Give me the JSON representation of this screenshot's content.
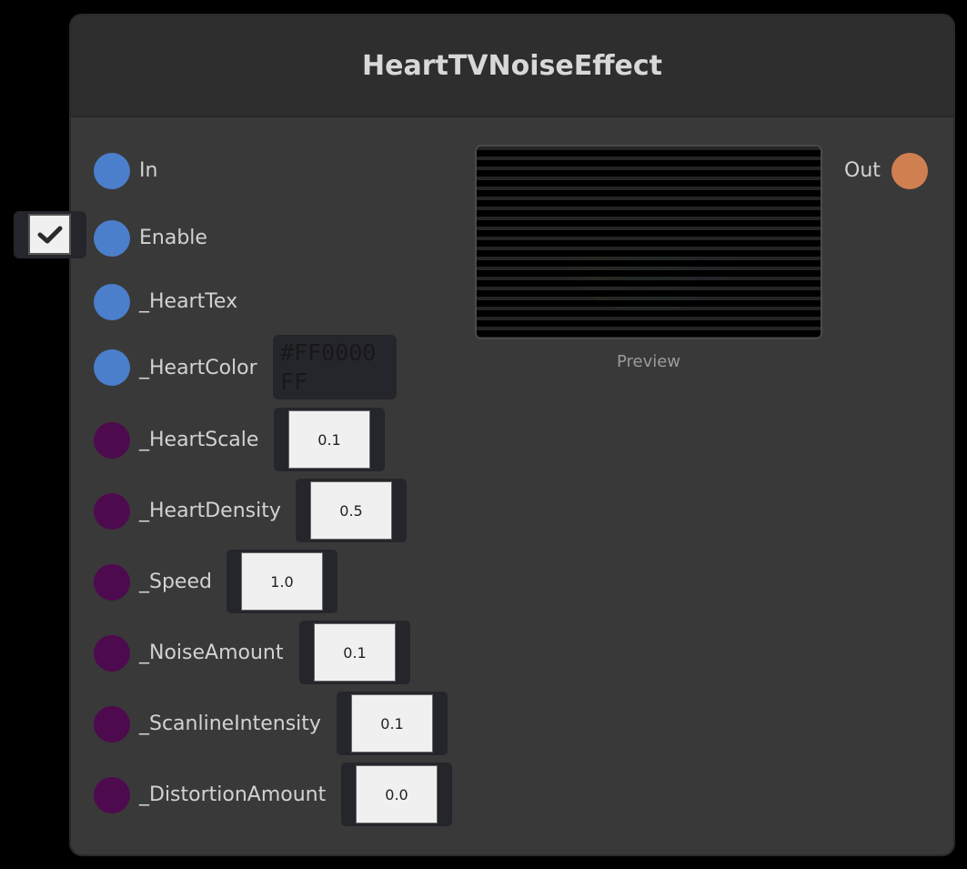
{
  "node": {
    "title": "HeartTVNoiseEffect",
    "preview_label": "Preview",
    "output": {
      "label": "Out",
      "color": "#d08050"
    },
    "inputs": [
      {
        "label": "In",
        "type": "flow",
        "color": "#4b7fcb"
      },
      {
        "label": "Enable",
        "type": "bool",
        "color": "#4b7fcb",
        "checked": true
      },
      {
        "label": "_HeartTex",
        "type": "texture",
        "color": "#4b7fcb"
      },
      {
        "label": "_HeartColor",
        "type": "color",
        "color": "#4b7fcb",
        "value": "#FF0000FF"
      },
      {
        "label": "_HeartScale",
        "type": "float",
        "color": "#4e0a4e",
        "value": "0.1"
      },
      {
        "label": "_HeartDensity",
        "type": "float",
        "color": "#4e0a4e",
        "value": "0.5"
      },
      {
        "label": "_Speed",
        "type": "float",
        "color": "#4e0a4e",
        "value": "1.0"
      },
      {
        "label": "_NoiseAmount",
        "type": "float",
        "color": "#4e0a4e",
        "value": "0.1"
      },
      {
        "label": "_ScanlineIntensity",
        "type": "float",
        "color": "#4e0a4e",
        "value": "0.1"
      },
      {
        "label": "_DistortionAmount",
        "type": "float",
        "color": "#4e0a4e",
        "value": "0.0"
      }
    ]
  }
}
